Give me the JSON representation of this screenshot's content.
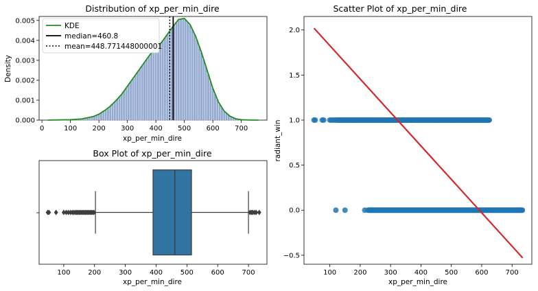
{
  "colors": {
    "hist_bar": "#4c72b0",
    "kde": "#228b22",
    "box": "#3274a1",
    "scatter": "#1f77b4",
    "regression": "#d62728",
    "median_line": "#000000",
    "mean_line": "#000000"
  },
  "chart_data": [
    {
      "type": "histogram",
      "title": "Distribution of xp_per_min_dire",
      "xlabel": "xp_per_min_dire",
      "ylabel": "Density",
      "xlim": [
        -10,
        790
      ],
      "ylim": [
        0,
        0.0052
      ],
      "xticks": [
        0,
        100,
        200,
        300,
        400,
        500,
        600,
        700
      ],
      "yticks": [
        0.0,
        0.001,
        0.002,
        0.003,
        0.004,
        0.005
      ],
      "ytick_labels": [
        "0.000",
        "0.001",
        "0.002",
        "0.003",
        "0.004",
        "0.005"
      ],
      "kde_x": [
        20,
        60,
        100,
        140,
        180,
        200,
        220,
        240,
        260,
        280,
        300,
        320,
        340,
        360,
        380,
        400,
        420,
        440,
        460,
        480,
        500,
        520,
        540,
        560,
        580,
        600,
        620,
        640,
        660,
        680,
        700,
        740,
        760
      ],
      "kde_y": [
        0.0,
        1e-05,
        2e-05,
        6e-05,
        0.00018,
        0.0003,
        0.00048,
        0.0007,
        0.00098,
        0.0013,
        0.0017,
        0.0021,
        0.0025,
        0.0029,
        0.0033,
        0.0036,
        0.0039,
        0.0043,
        0.0047,
        0.00505,
        0.0051,
        0.0048,
        0.0042,
        0.0034,
        0.0025,
        0.0016,
        0.0009,
        0.00045,
        0.0002,
        7e-05,
        2e-05,
        0.0,
        0.0
      ],
      "median": 460.8,
      "mean": 448.771448000001,
      "legend": [
        {
          "label": "KDE",
          "style": "kde"
        },
        {
          "label": "median=460.8",
          "style": "median"
        },
        {
          "label": "mean=448.771448000001",
          "style": "mean"
        }
      ],
      "legend_position": "top-left"
    },
    {
      "type": "box",
      "title": "Box Plot of xp_per_min_dire",
      "xlabel": "xp_per_min_dire",
      "xlim": [
        20,
        760
      ],
      "xticks": [
        100,
        200,
        300,
        400,
        500,
        600,
        700
      ],
      "min_whisker": 203,
      "q1": 390,
      "median": 460.8,
      "q3": 515,
      "max_whisker": 700,
      "outliers_low": [
        48,
        52,
        75,
        100,
        108,
        115,
        122,
        128,
        133,
        138,
        142,
        146,
        150,
        154,
        158,
        162,
        166,
        170,
        174,
        178,
        182,
        186,
        190,
        194,
        198
      ],
      "outliers_high": [
        705,
        710,
        714,
        720,
        725,
        735
      ]
    },
    {
      "type": "scatter",
      "title": "Scatter Plot of xp_per_min_dire",
      "xlabel": "xp_per_min_dire",
      "ylabel": "radiant_win",
      "xlim": [
        15,
        765
      ],
      "ylim": [
        -0.6,
        2.15
      ],
      "xticks": [
        100,
        200,
        300,
        400,
        500,
        600,
        700
      ],
      "yticks": [
        -0.5,
        0.0,
        0.5,
        1.0,
        1.5,
        2.0
      ],
      "ytick_labels": [
        "−0.5",
        "0.0",
        "0.5",
        "1.0",
        "1.5",
        "2.0"
      ],
      "series": [
        {
          "y": 1,
          "x": [
            48,
            52,
            75,
            80,
            100,
            105,
            110,
            115,
            120
          ],
          "x_band": [
            125,
            625
          ]
        },
        {
          "y": 0,
          "x": [
            120,
            150,
            215,
            225,
            230
          ],
          "x_band": [
            230,
            735
          ]
        }
      ],
      "regression": {
        "x": [
          48,
          735
        ],
        "y": [
          2.02,
          -0.53
        ]
      }
    }
  ]
}
